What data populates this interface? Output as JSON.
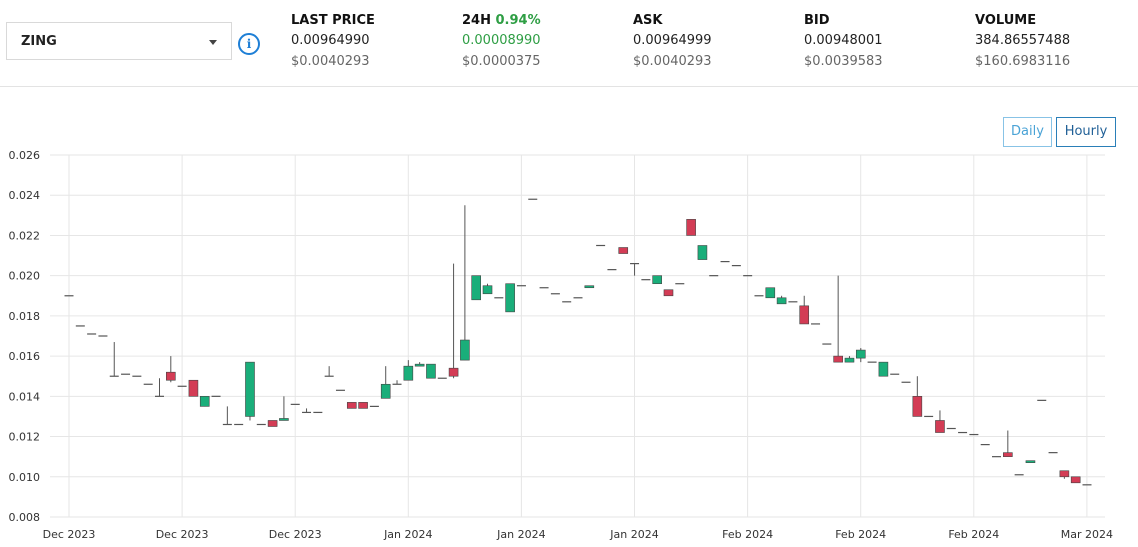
{
  "selector": {
    "value": "ZING"
  },
  "stats": [
    {
      "label": "LAST PRICE",
      "pct": "",
      "value": "0.00964990",
      "usd": "$0.0040293"
    },
    {
      "label": "24H",
      "pct": "0.94%",
      "value": "0.00008990",
      "usd": "$0.0000375"
    },
    {
      "label": "ASK",
      "pct": "",
      "value": "0.00964999",
      "usd": "$0.0040293"
    },
    {
      "label": "BID",
      "pct": "",
      "value": "0.00948001",
      "usd": "$0.0039583"
    },
    {
      "label": "VOLUME",
      "pct": "",
      "value": "384.86557488",
      "usd": "$160.6983116"
    }
  ],
  "buttons": {
    "daily": "Daily",
    "hourly": "Hourly"
  },
  "colors": {
    "up": "#1aae7a",
    "down": "#d33c55",
    "accent": "#1e7fd6",
    "positive_text": "#2e9e44"
  },
  "chart_data": {
    "type": "candlestick",
    "ylim": [
      0.008,
      0.026
    ],
    "yticks": [
      "0.026",
      "0.024",
      "0.022",
      "0.020",
      "0.018",
      "0.016",
      "0.014",
      "0.012",
      "0.010",
      "0.008"
    ],
    "xticks": [
      "Dec 2023",
      "Dec 2023",
      "Dec 2023",
      "Jan 2024",
      "Jan 2024",
      "Jan 2024",
      "Feb 2024",
      "Feb 2024",
      "Feb 2024",
      "Mar 2024"
    ],
    "grid": true,
    "candles": [
      [
        0.019,
        0.019,
        0.019,
        0.019
      ],
      [
        0.0175,
        0.0175,
        0.0175,
        0.0175
      ],
      [
        0.0171,
        0.0171,
        0.0171,
        0.0171
      ],
      [
        0.017,
        0.017,
        0.017,
        0.017
      ],
      [
        0.015,
        0.0167,
        0.015,
        0.015
      ],
      [
        0.0151,
        0.0151,
        0.0151,
        0.0151
      ],
      [
        0.015,
        0.015,
        0.015,
        0.015
      ],
      [
        0.0146,
        0.0146,
        0.0146,
        0.0146
      ],
      [
        0.014,
        0.0149,
        0.014,
        0.014
      ],
      [
        0.0152,
        0.016,
        0.0147,
        0.0148
      ],
      [
        0.0145,
        0.0145,
        0.0145,
        0.0145
      ],
      [
        0.0148,
        0.0148,
        0.014,
        0.014
      ],
      [
        0.0135,
        0.014,
        0.0135,
        0.014
      ],
      [
        0.014,
        0.014,
        0.014,
        0.014
      ],
      [
        0.0126,
        0.0135,
        0.0126,
        0.0126
      ],
      [
        0.0126,
        0.0126,
        0.0126,
        0.0126
      ],
      [
        0.013,
        0.0157,
        0.0128,
        0.0157
      ],
      [
        0.0126,
        0.0126,
        0.0126,
        0.0126
      ],
      [
        0.0128,
        0.0128,
        0.0125,
        0.0125
      ],
      [
        0.0128,
        0.014,
        0.0128,
        0.0129
      ],
      [
        0.0136,
        0.0136,
        0.0136,
        0.0136
      ],
      [
        0.0132,
        0.0134,
        0.0132,
        0.0132
      ],
      [
        0.0132,
        0.0132,
        0.0132,
        0.0132
      ],
      [
        0.015,
        0.0155,
        0.015,
        0.015
      ],
      [
        0.0143,
        0.0143,
        0.0143,
        0.0143
      ],
      [
        0.0137,
        0.0137,
        0.0134,
        0.0134
      ],
      [
        0.0137,
        0.0137,
        0.0134,
        0.0134
      ],
      [
        0.0135,
        0.0135,
        0.0135,
        0.0135
      ],
      [
        0.0139,
        0.0155,
        0.0139,
        0.0146
      ],
      [
        0.0146,
        0.0148,
        0.0146,
        0.0146
      ],
      [
        0.0148,
        0.0158,
        0.0148,
        0.0155
      ],
      [
        0.0155,
        0.0157,
        0.0155,
        0.0156
      ],
      [
        0.0149,
        0.0156,
        0.0149,
        0.0156
      ],
      [
        0.0149,
        0.0149,
        0.0149,
        0.0149
      ],
      [
        0.0154,
        0.0206,
        0.0149,
        0.015
      ],
      [
        0.0158,
        0.0235,
        0.0158,
        0.0168
      ],
      [
        0.0188,
        0.02,
        0.0188,
        0.02
      ],
      [
        0.0191,
        0.0196,
        0.0191,
        0.0195
      ],
      [
        0.0189,
        0.0189,
        0.0189,
        0.0189
      ],
      [
        0.0182,
        0.0196,
        0.0182,
        0.0196
      ],
      [
        0.0195,
        0.0195,
        0.0195,
        0.0195
      ],
      [
        0.0238,
        0.0238,
        0.0238,
        0.0238
      ],
      [
        0.0194,
        0.0194,
        0.0194,
        0.0194
      ],
      [
        0.0191,
        0.0191,
        0.0191,
        0.0191
      ],
      [
        0.0187,
        0.0187,
        0.0187,
        0.0187
      ],
      [
        0.0189,
        0.0189,
        0.0189,
        0.0189
      ],
      [
        0.0194,
        0.0195,
        0.0194,
        0.0195
      ],
      [
        0.0215,
        0.0215,
        0.0215,
        0.0215
      ],
      [
        0.0203,
        0.0203,
        0.0203,
        0.0203
      ],
      [
        0.0214,
        0.0214,
        0.0211,
        0.0211
      ],
      [
        0.0206,
        0.0206,
        0.02,
        0.0206
      ],
      [
        0.0198,
        0.0198,
        0.0198,
        0.0198
      ],
      [
        0.0196,
        0.02,
        0.0196,
        0.02
      ],
      [
        0.0193,
        0.0193,
        0.019,
        0.019
      ],
      [
        0.0196,
        0.0196,
        0.0196,
        0.0196
      ],
      [
        0.0228,
        0.0228,
        0.022,
        0.022
      ],
      [
        0.0208,
        0.0215,
        0.0208,
        0.0215
      ],
      [
        0.02,
        0.02,
        0.02,
        0.02
      ],
      [
        0.0207,
        0.0207,
        0.0207,
        0.0207
      ],
      [
        0.0205,
        0.0205,
        0.0205,
        0.0205
      ],
      [
        0.02,
        0.02,
        0.02,
        0.02
      ],
      [
        0.019,
        0.019,
        0.019,
        0.019
      ],
      [
        0.0189,
        0.0194,
        0.0189,
        0.0194
      ],
      [
        0.0186,
        0.019,
        0.0186,
        0.0189
      ],
      [
        0.0187,
        0.0187,
        0.0187,
        0.0187
      ],
      [
        0.0185,
        0.019,
        0.0176,
        0.0176
      ],
      [
        0.0176,
        0.0176,
        0.0176,
        0.0176
      ],
      [
        0.0166,
        0.0166,
        0.0166,
        0.0166
      ],
      [
        0.016,
        0.02,
        0.0157,
        0.0157
      ],
      [
        0.0157,
        0.016,
        0.0157,
        0.0159
      ],
      [
        0.0159,
        0.0164,
        0.0157,
        0.0163
      ],
      [
        0.0157,
        0.0157,
        0.0157,
        0.0157
      ],
      [
        0.015,
        0.0157,
        0.015,
        0.0157
      ],
      [
        0.0151,
        0.0151,
        0.0151,
        0.0151
      ],
      [
        0.0147,
        0.0147,
        0.0147,
        0.0147
      ],
      [
        0.014,
        0.015,
        0.013,
        0.013
      ],
      [
        0.013,
        0.013,
        0.013,
        0.013
      ],
      [
        0.0128,
        0.0133,
        0.0122,
        0.0122
      ],
      [
        0.0124,
        0.0124,
        0.0124,
        0.0124
      ],
      [
        0.0122,
        0.0122,
        0.0122,
        0.0122
      ],
      [
        0.0121,
        0.0121,
        0.0121,
        0.0121
      ],
      [
        0.0116,
        0.0116,
        0.0116,
        0.0116
      ],
      [
        0.011,
        0.011,
        0.011,
        0.011
      ],
      [
        0.0112,
        0.0123,
        0.011,
        0.011
      ],
      [
        0.0101,
        0.0101,
        0.0101,
        0.0101
      ],
      [
        0.0107,
        0.0108,
        0.0107,
        0.0108
      ],
      [
        0.0138,
        0.0138,
        0.0138,
        0.0138
      ],
      [
        0.0112,
        0.0112,
        0.0112,
        0.0112
      ],
      [
        0.0103,
        0.0103,
        0.0099,
        0.01
      ],
      [
        0.01,
        0.01,
        0.0097,
        0.0097
      ],
      [
        0.0096,
        0.0096,
        0.0096,
        0.0096
      ]
    ]
  }
}
